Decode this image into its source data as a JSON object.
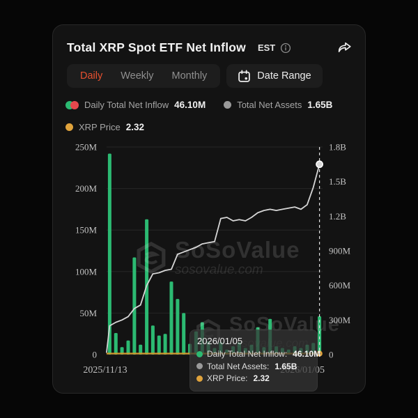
{
  "header": {
    "title": "Total XRP Spot ETF Net Inflow",
    "badge": "EST"
  },
  "toolbar": {
    "tabs": [
      "Daily",
      "Weekly",
      "Monthly"
    ],
    "active_tab": "Daily",
    "date_range_label": "Date Range"
  },
  "legend": {
    "inflow_label": "Daily Total Net Inflow",
    "inflow_value": "46.10M",
    "assets_label": "Total Net Assets",
    "assets_value": "1.65B",
    "price_label": "XRP Price",
    "price_value": "2.32"
  },
  "watermark": {
    "brand": "SoSoValue",
    "domain": "sosovalue.com"
  },
  "tooltip": {
    "date": "2026/01/05",
    "rows": [
      {
        "label": "Daily Total Net Inflow:",
        "value": "46.10M",
        "color": "#2cba72"
      },
      {
        "label": "Total Net Assets:",
        "value": "1.65B",
        "color": "#9a9a9a"
      },
      {
        "label": "XRP Price:",
        "value": "2.32",
        "color": "#e0a33c"
      }
    ]
  },
  "colors": {
    "accent": "#e8502f",
    "bar_green": "#2cba72",
    "outflow_red": "#e5484d",
    "assets_line": "#d6d6d6",
    "price_orange": "#d29a2d",
    "card_bg": "#131313",
    "page_bg": "#060606"
  },
  "chart_data": {
    "type": "bar",
    "title": "Total XRP Spot ETF Net Inflow",
    "x_labels_visible": [
      "2025/11/13",
      "2026/01/05"
    ],
    "left_axis": {
      "ticks": [
        "0",
        "50M",
        "100M",
        "150M",
        "200M",
        "250M"
      ],
      "max": 250,
      "unit": "USD (M)"
    },
    "right_axis": {
      "ticks": [
        "0",
        "300M",
        "600M",
        "900M",
        "1.2B",
        "1.5B",
        "1.8B"
      ],
      "max": 1.8,
      "unit": "USD (B)"
    },
    "bar_series": {
      "name": "Daily Total Net Inflow",
      "color": "#2cba72",
      "unit": "M",
      "values": [
        242,
        26,
        9,
        17,
        117,
        12,
        163,
        35,
        23,
        25,
        88,
        67,
        50,
        13,
        28,
        39,
        16,
        8,
        15,
        6,
        10,
        15,
        8,
        12,
        33,
        9,
        43,
        10,
        8,
        6,
        10,
        8,
        12,
        14,
        46.1
      ]
    },
    "line_series": {
      "name": "Total Net Assets",
      "color": "#d6d6d6",
      "unit": "B",
      "start": 0.02,
      "values": [
        0.25,
        0.28,
        0.3,
        0.33,
        0.4,
        0.43,
        0.6,
        0.7,
        0.71,
        0.73,
        0.74,
        0.87,
        0.89,
        0.91,
        0.93,
        0.96,
        0.97,
        0.98,
        1.18,
        1.19,
        1.16,
        1.17,
        1.16,
        1.19,
        1.23,
        1.25,
        1.26,
        1.25,
        1.26,
        1.27,
        1.28,
        1.26,
        1.3,
        1.45,
        1.65
      ]
    },
    "price_series": {
      "name": "XRP Price",
      "color": "#d29a2d",
      "value": 2.32
    },
    "highlight_index": 34,
    "grid": true,
    "legend_position": "top"
  }
}
